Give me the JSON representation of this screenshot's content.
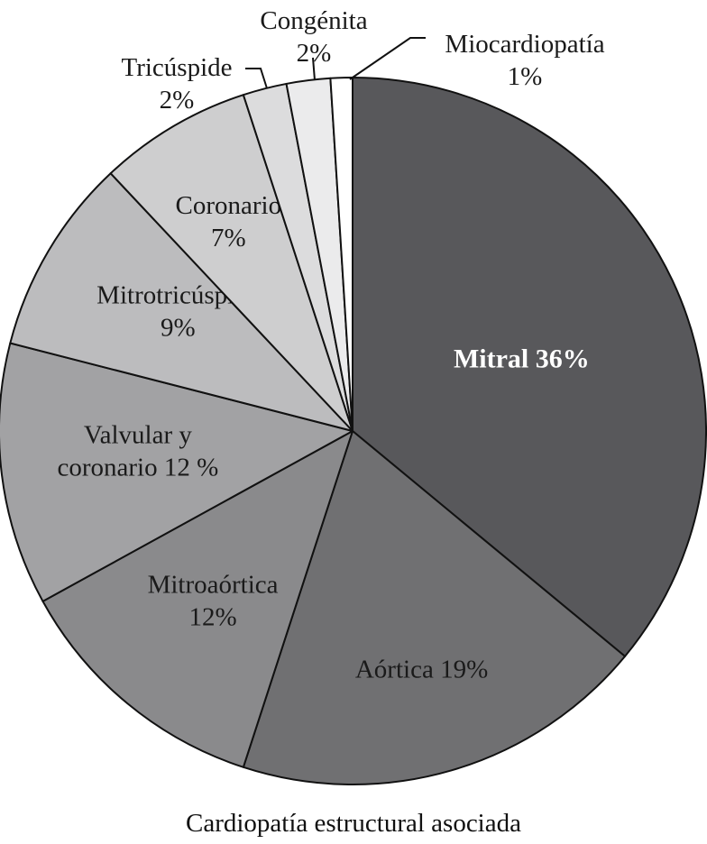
{
  "chart_data": {
    "type": "pie",
    "caption": "Cardiopatía estructural asociada",
    "slices": [
      {
        "label": "Mitral 36%",
        "lines": [
          "Mitral 36%"
        ],
        "value": 36,
        "color": "#58585b",
        "text_color": "#ffffff",
        "bold": true
      },
      {
        "label": "Aórtica 19%",
        "lines": [
          "Aórtica 19%"
        ],
        "value": 19,
        "color": "#707072",
        "text_color": "#1a1a1a",
        "bold": false
      },
      {
        "label": "Mitroaórtica 12%",
        "lines": [
          "Mitroaórtica",
          "12%"
        ],
        "value": 12,
        "color": "#8a8a8c",
        "text_color": "#1a1a1a",
        "bold": false
      },
      {
        "label": "Valvular y coronario 12 %",
        "lines": [
          "Valvular y",
          "coronario 12 %"
        ],
        "value": 12,
        "color": "#a2a2a4",
        "text_color": "#1a1a1a",
        "bold": false
      },
      {
        "label": "Mitrotricúspide 9%",
        "lines": [
          "Mitrotricúspide",
          "9%"
        ],
        "value": 9,
        "color": "#bcbcbe",
        "text_color": "#1a1a1a",
        "bold": false
      },
      {
        "label": "Coronario 7%",
        "lines": [
          "Coronario",
          "7%"
        ],
        "value": 7,
        "color": "#cececf",
        "text_color": "#1a1a1a",
        "bold": false
      },
      {
        "label": "Tricúspide 2%",
        "lines": [
          "Tricúspide",
          "2%"
        ],
        "value": 2,
        "color": "#dcdcdd",
        "text_color": "#1a1a1a",
        "bold": false
      },
      {
        "label": "Congénita 2%",
        "lines": [
          "Congénita",
          "2%"
        ],
        "value": 2,
        "color": "#ebebec",
        "text_color": "#1a1a1a",
        "bold": false
      },
      {
        "label": "Miocardiopatía 1%",
        "lines": [
          "Miocardiopatía",
          "1%"
        ],
        "value": 1,
        "color": "#ffffff",
        "text_color": "#1a1a1a",
        "bold": false
      }
    ],
    "start": "12 o'clock",
    "direction": "clockwise",
    "legend": "none"
  }
}
